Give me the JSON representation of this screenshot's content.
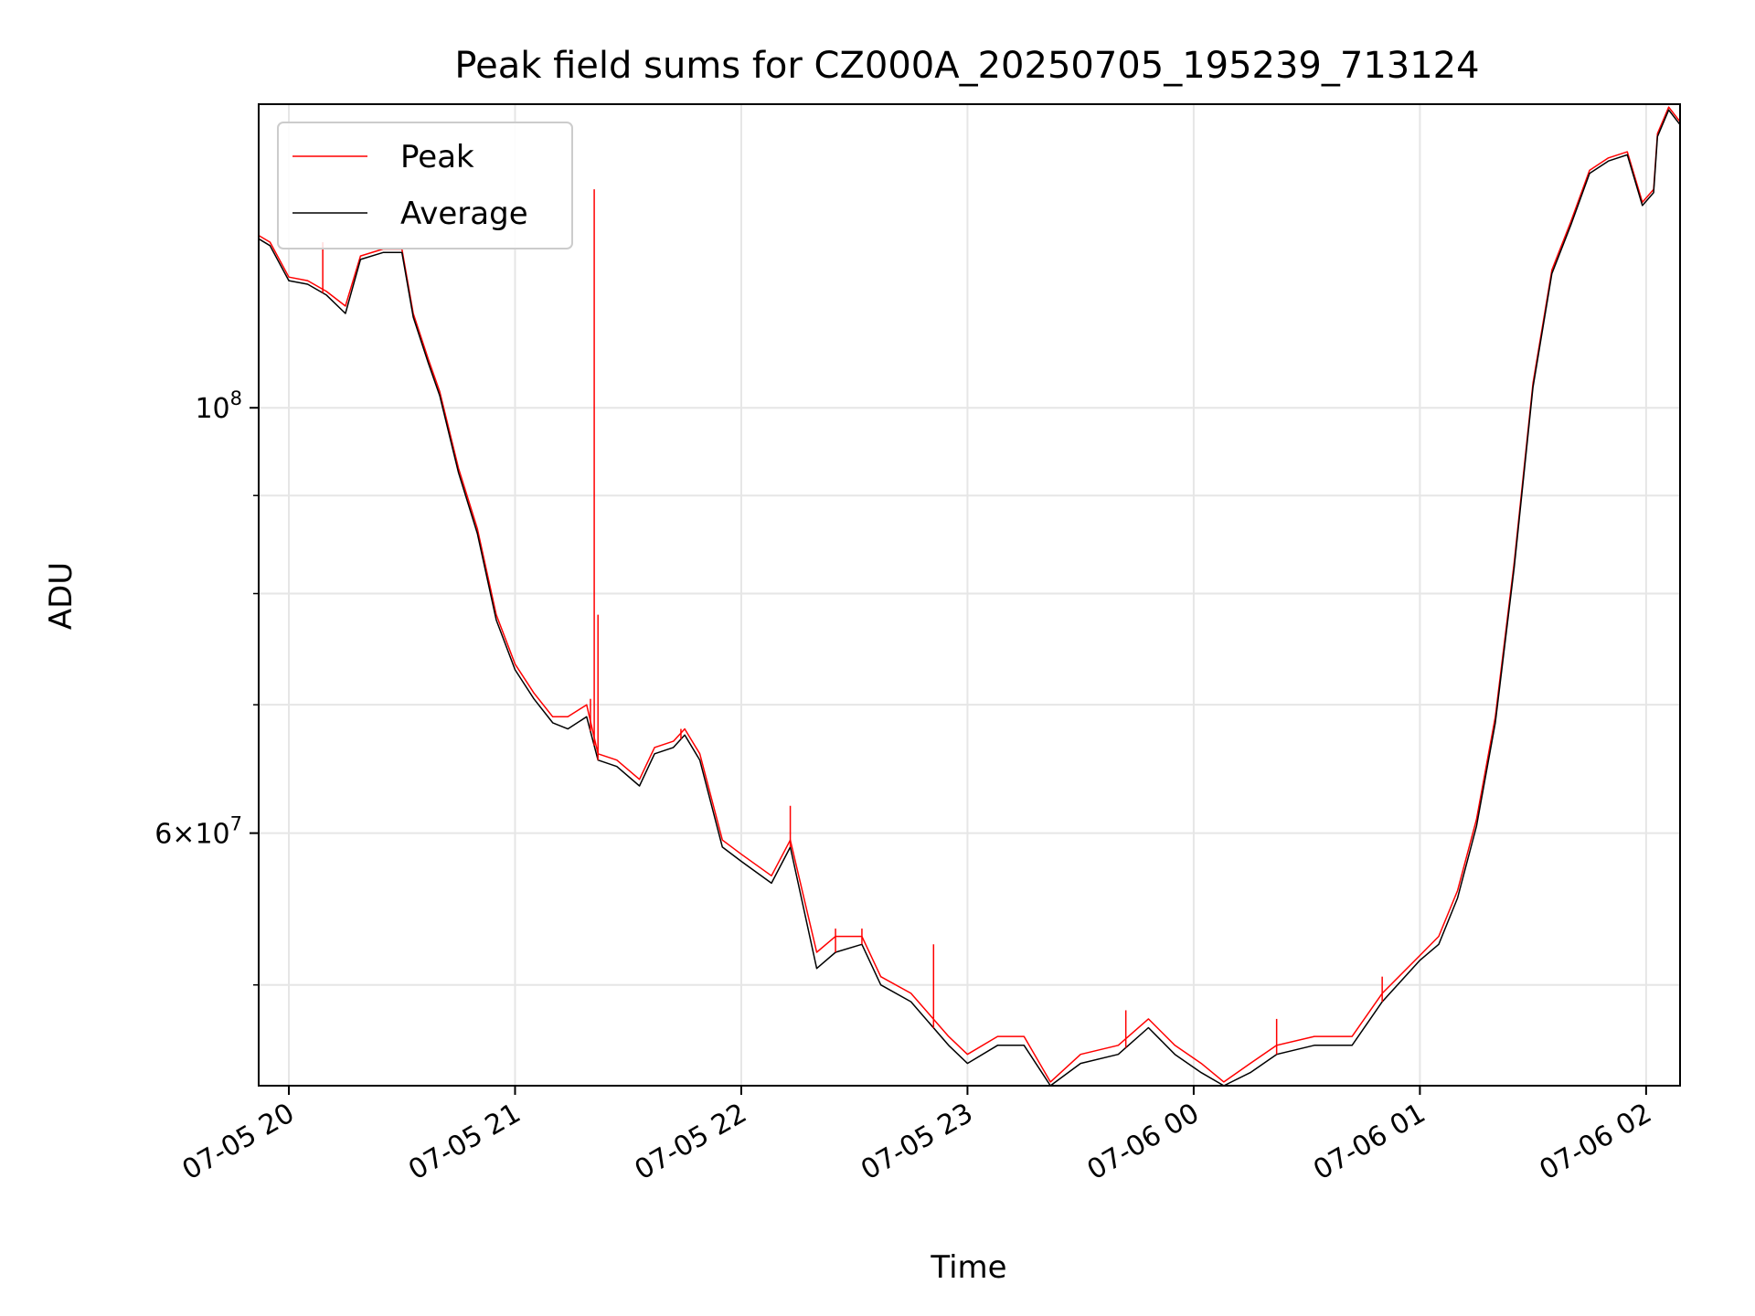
{
  "chart_data": {
    "type": "line",
    "title": "Peak field sums for CZ000A_20250705_195239_713124",
    "xlabel": "Time",
    "ylabel": "ADU",
    "x_range": [
      "2025-07-05 19:52",
      "2025-07-06 02:09"
    ],
    "ylim": [
      44300000,
      144000000
    ],
    "y_scale": "log",
    "grid": true,
    "legend_position": "top-left",
    "x_ticks": [
      "07-05 20",
      "07-05 21",
      "07-05 22",
      "07-05 23",
      "07-06 00",
      "07-06 01",
      "07-06 02"
    ],
    "y_ticks": [
      {
        "value": 100000000,
        "base": "10",
        "exp": "8",
        "mant": ""
      },
      {
        "value": 60000000,
        "base": "10",
        "exp": "7",
        "mant": "6"
      }
    ],
    "y_minor_ticks": [
      50000000,
      70000000,
      80000000,
      90000000
    ],
    "series": [
      {
        "name": "Peak",
        "color": "#ff0000",
        "points": [
          [
            "2025-07-05 19:52",
            123000000
          ],
          [
            "2025-07-05 19:55",
            122000000
          ],
          [
            "2025-07-05 20:00",
            117000000
          ],
          [
            "2025-07-05 20:05",
            116500000
          ],
          [
            "2025-07-05 20:10",
            115000000
          ],
          [
            "2025-07-05 20:15",
            113000000
          ],
          [
            "2025-07-05 20:19",
            120000000
          ],
          [
            "2025-07-05 20:25",
            121000000
          ],
          [
            "2025-07-05 20:30",
            121000000
          ],
          [
            "2025-07-05 20:33",
            112000000
          ],
          [
            "2025-07-05 20:37",
            106000000
          ],
          [
            "2025-07-05 20:40",
            102000000
          ],
          [
            "2025-07-05 20:45",
            93000000
          ],
          [
            "2025-07-05 20:50",
            86500000
          ],
          [
            "2025-07-05 20:55",
            78000000
          ],
          [
            "2025-07-05 21:00",
            73500000
          ],
          [
            "2025-07-05 21:05",
            71000000
          ],
          [
            "2025-07-05 21:10",
            69000000
          ],
          [
            "2025-07-05 21:14",
            69000000
          ],
          [
            "2025-07-05 21:19",
            70000000
          ],
          [
            "2025-07-05 21:22",
            66000000
          ],
          [
            "2025-07-05 21:27",
            65500000
          ],
          [
            "2025-07-05 21:33",
            64000000
          ],
          [
            "2025-07-05 21:37",
            66500000
          ],
          [
            "2025-07-05 21:42",
            67000000
          ],
          [
            "2025-07-05 21:45",
            68000000
          ],
          [
            "2025-07-05 21:49",
            66000000
          ],
          [
            "2025-07-05 21:55",
            59500000
          ],
          [
            "2025-07-05 22:00",
            58500000
          ],
          [
            "2025-07-05 22:08",
            57000000
          ],
          [
            "2025-07-05 22:13",
            59500000
          ],
          [
            "2025-07-05 22:20",
            52000000
          ],
          [
            "2025-07-05 22:25",
            53000000
          ],
          [
            "2025-07-05 22:32",
            53000000
          ],
          [
            "2025-07-05 22:37",
            50500000
          ],
          [
            "2025-07-05 22:45",
            49500000
          ],
          [
            "2025-07-05 22:55",
            47000000
          ],
          [
            "2025-07-05 23:00",
            46000000
          ],
          [
            "2025-07-05 23:08",
            47000000
          ],
          [
            "2025-07-05 23:15",
            47000000
          ],
          [
            "2025-07-05 23:22",
            44500000
          ],
          [
            "2025-07-05 23:30",
            46000000
          ],
          [
            "2025-07-05 23:40",
            46500000
          ],
          [
            "2025-07-05 23:48",
            48000000
          ],
          [
            "2025-07-05 23:55",
            46500000
          ],
          [
            "2025-07-06 00:02",
            45500000
          ],
          [
            "2025-07-06 00:08",
            44500000
          ],
          [
            "2025-07-06 00:15",
            45500000
          ],
          [
            "2025-07-06 00:22",
            46500000
          ],
          [
            "2025-07-06 00:32",
            47000000
          ],
          [
            "2025-07-06 00:42",
            47000000
          ],
          [
            "2025-07-06 00:50",
            49500000
          ],
          [
            "2025-07-06 01:00",
            51800000
          ],
          [
            "2025-07-06 01:05",
            53000000
          ],
          [
            "2025-07-06 01:10",
            56000000
          ],
          [
            "2025-07-06 01:15",
            61000000
          ],
          [
            "2025-07-06 01:20",
            69000000
          ],
          [
            "2025-07-06 01:25",
            83000000
          ],
          [
            "2025-07-06 01:30",
            103000000
          ],
          [
            "2025-07-06 01:35",
            118000000
          ],
          [
            "2025-07-06 01:40",
            125000000
          ],
          [
            "2025-07-06 01:45",
            133000000
          ],
          [
            "2025-07-06 01:50",
            135000000
          ],
          [
            "2025-07-06 01:55",
            136000000
          ],
          [
            "2025-07-06 01:59",
            128000000
          ],
          [
            "2025-07-06 02:02",
            130000000
          ],
          [
            "2025-07-06 02:03",
            139000000
          ],
          [
            "2025-07-06 02:06",
            143500000
          ],
          [
            "2025-07-06 02:09",
            141000000
          ]
        ],
        "spikes": [
          [
            "2025-07-05 20:09",
            122000000
          ],
          [
            "2025-07-05 21:21",
            130000000
          ],
          [
            "2025-07-05 21:22",
            78000000
          ],
          [
            "2025-07-05 21:20",
            70500000
          ],
          [
            "2025-07-05 21:44",
            68000000
          ],
          [
            "2025-07-05 22:13",
            62000000
          ],
          [
            "2025-07-05 22:25",
            53500000
          ],
          [
            "2025-07-05 22:32",
            53500000
          ],
          [
            "2025-07-05 22:51",
            52500000
          ],
          [
            "2025-07-05 23:42",
            48500000
          ],
          [
            "2025-07-06 00:22",
            48000000
          ],
          [
            "2025-07-06 00:50",
            50500000
          ]
        ]
      },
      {
        "name": "Average",
        "color": "#000000",
        "points": [
          [
            "2025-07-05 19:52",
            122500000
          ],
          [
            "2025-07-05 19:55",
            121500000
          ],
          [
            "2025-07-05 20:00",
            116500000
          ],
          [
            "2025-07-05 20:05",
            116000000
          ],
          [
            "2025-07-05 20:10",
            114500000
          ],
          [
            "2025-07-05 20:15",
            112000000
          ],
          [
            "2025-07-05 20:19",
            119500000
          ],
          [
            "2025-07-05 20:25",
            120500000
          ],
          [
            "2025-07-05 20:30",
            120500000
          ],
          [
            "2025-07-05 20:33",
            111500000
          ],
          [
            "2025-07-05 20:37",
            105500000
          ],
          [
            "2025-07-05 20:40",
            101500000
          ],
          [
            "2025-07-05 20:45",
            92500000
          ],
          [
            "2025-07-05 20:50",
            86000000
          ],
          [
            "2025-07-05 20:55",
            77500000
          ],
          [
            "2025-07-05 21:00",
            73000000
          ],
          [
            "2025-07-05 21:05",
            70500000
          ],
          [
            "2025-07-05 21:10",
            68500000
          ],
          [
            "2025-07-05 21:14",
            68000000
          ],
          [
            "2025-07-05 21:19",
            69000000
          ],
          [
            "2025-07-05 21:22",
            65500000
          ],
          [
            "2025-07-05 21:27",
            65000000
          ],
          [
            "2025-07-05 21:33",
            63500000
          ],
          [
            "2025-07-05 21:37",
            66000000
          ],
          [
            "2025-07-05 21:42",
            66500000
          ],
          [
            "2025-07-05 21:45",
            67500000
          ],
          [
            "2025-07-05 21:49",
            65500000
          ],
          [
            "2025-07-05 21:55",
            59000000
          ],
          [
            "2025-07-05 22:00",
            58000000
          ],
          [
            "2025-07-05 22:08",
            56500000
          ],
          [
            "2025-07-05 22:13",
            59000000
          ],
          [
            "2025-07-05 22:20",
            51000000
          ],
          [
            "2025-07-05 22:25",
            52000000
          ],
          [
            "2025-07-05 22:32",
            52500000
          ],
          [
            "2025-07-05 22:37",
            50000000
          ],
          [
            "2025-07-05 22:45",
            49000000
          ],
          [
            "2025-07-05 22:55",
            46500000
          ],
          [
            "2025-07-05 23:00",
            45500000
          ],
          [
            "2025-07-05 23:08",
            46500000
          ],
          [
            "2025-07-05 23:15",
            46500000
          ],
          [
            "2025-07-05 23:22",
            44300000
          ],
          [
            "2025-07-05 23:30",
            45500000
          ],
          [
            "2025-07-05 23:40",
            46000000
          ],
          [
            "2025-07-05 23:48",
            47500000
          ],
          [
            "2025-07-05 23:55",
            46000000
          ],
          [
            "2025-07-06 00:02",
            45000000
          ],
          [
            "2025-07-06 00:08",
            44300000
          ],
          [
            "2025-07-06 00:15",
            45000000
          ],
          [
            "2025-07-06 00:22",
            46000000
          ],
          [
            "2025-07-06 00:32",
            46500000
          ],
          [
            "2025-07-06 00:42",
            46500000
          ],
          [
            "2025-07-06 00:50",
            49000000
          ],
          [
            "2025-07-06 01:00",
            51500000
          ],
          [
            "2025-07-06 01:05",
            52500000
          ],
          [
            "2025-07-06 01:10",
            55500000
          ],
          [
            "2025-07-06 01:15",
            60500000
          ],
          [
            "2025-07-06 01:20",
            68500000
          ],
          [
            "2025-07-06 01:25",
            82500000
          ],
          [
            "2025-07-06 01:30",
            102500000
          ],
          [
            "2025-07-06 01:35",
            117500000
          ],
          [
            "2025-07-06 01:40",
            124500000
          ],
          [
            "2025-07-06 01:45",
            132500000
          ],
          [
            "2025-07-06 01:50",
            134500000
          ],
          [
            "2025-07-06 01:55",
            135500000
          ],
          [
            "2025-07-06 01:59",
            127500000
          ],
          [
            "2025-07-06 02:02",
            129500000
          ],
          [
            "2025-07-06 02:03",
            138500000
          ],
          [
            "2025-07-06 02:06",
            143000000
          ],
          [
            "2025-07-06 02:09",
            140500000
          ]
        ]
      }
    ]
  }
}
